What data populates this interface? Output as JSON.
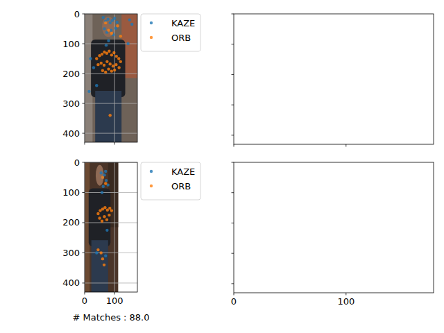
{
  "chart_data": [
    {
      "type": "scatter",
      "image": {
        "width": 176,
        "height": 430
      },
      "xlim": [
        0,
        176
      ],
      "ylim": [
        430,
        0
      ],
      "xticks": [
        0,
        100
      ],
      "yticks": [
        0,
        100,
        200,
        300,
        400
      ],
      "grid": true,
      "tick_labels": "y",
      "legend": "outside right",
      "series": [
        {
          "name": "KAZE",
          "color": "#1f77b4",
          "x": [
            62,
            70,
            78,
            85,
            92,
            100,
            108,
            66,
            74,
            88,
            96,
            104,
            80,
            72,
            150,
            158,
            20,
            15,
            40,
            30,
            145
          ],
          "values": [
            12,
            25,
            18,
            30,
            22,
            15,
            28,
            50,
            62,
            55,
            70,
            48,
            90,
            105,
            20,
            35,
            150,
            260,
            240,
            180,
            100
          ]
        },
        {
          "name": "ORB",
          "color": "#ff7f0e",
          "x": [
            40,
            50,
            58,
            66,
            74,
            82,
            90,
            98,
            106,
            114,
            120,
            45,
            55,
            65,
            75,
            85,
            95,
            105,
            115,
            60,
            70,
            80,
            90,
            100,
            70,
            80,
            90,
            110,
            120,
            85
          ],
          "values": [
            150,
            140,
            135,
            128,
            132,
            125,
            138,
            130,
            142,
            150,
            160,
            170,
            165,
            172,
            160,
            168,
            175,
            170,
            180,
            190,
            195,
            185,
            192,
            188,
            30,
            55,
            65,
            40,
            75,
            340
          ]
        }
      ]
    },
    {
      "type": "scatter",
      "xlim": [
        0,
        178
      ],
      "ylim": [
        430,
        0
      ],
      "xticks": [
        0,
        100
      ],
      "yticks": [
        0,
        100,
        200,
        300,
        400
      ],
      "grid": false,
      "tick_labels": false,
      "series": []
    },
    {
      "type": "scatter",
      "image": {
        "width": 112,
        "height": 430
      },
      "xlim": [
        0,
        176
      ],
      "ylim": [
        430,
        0
      ],
      "xticks": [
        0,
        100
      ],
      "yticks": [
        0,
        100,
        200,
        300,
        400
      ],
      "grid": true,
      "tick_labels": true,
      "legend": "outside right",
      "xlabel": "# Matches : 88.0",
      "series": [
        {
          "name": "KAZE",
          "color": "#1f77b4",
          "x": [
            55,
            60,
            66,
            72,
            78,
            62,
            70,
            75,
            40,
            70,
            58
          ],
          "values": [
            35,
            50,
            42,
            60,
            75,
            80,
            30,
            225,
            300,
            310,
            100
          ]
        },
        {
          "name": "ORB",
          "color": "#ff7f0e",
          "x": [
            45,
            52,
            60,
            68,
            76,
            84,
            90,
            50,
            58,
            66,
            74,
            82,
            60,
            70,
            45,
            55,
            60,
            65
          ],
          "values": [
            170,
            160,
            155,
            150,
            158,
            152,
            160,
            185,
            195,
            180,
            190,
            175,
            50,
            70,
            290,
            300,
            320,
            340
          ]
        }
      ]
    },
    {
      "type": "scatter",
      "xlim": [
        0,
        178
      ],
      "ylim": [
        430,
        0
      ],
      "xticks": [
        0,
        100
      ],
      "yticks": [
        0,
        100,
        200,
        300,
        400
      ],
      "grid": false,
      "tick_labels": "x",
      "series": []
    }
  ]
}
